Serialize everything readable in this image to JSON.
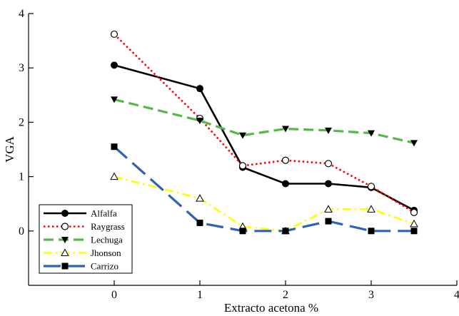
{
  "chart_data": {
    "type": "line",
    "xlabel": "Extracto acetona %",
    "ylabel": "VGA",
    "xlim": [
      -1,
      4
    ],
    "ylim": [
      -1,
      4
    ],
    "xticks": [
      0,
      1,
      2,
      3,
      4
    ],
    "yticks": [
      0,
      1,
      2,
      3,
      4
    ],
    "xtick_labels": [
      "0",
      "1",
      "2",
      "3",
      "4"
    ],
    "ytick_labels": [
      "0",
      "1",
      "2",
      "3",
      "4"
    ],
    "grid": false,
    "legend_position": "bottom-left",
    "x": [
      0,
      1,
      1.5,
      2,
      2.5,
      3,
      3.5
    ],
    "series": [
      {
        "name": "Alfalfa",
        "values": [
          3.05,
          2.62,
          1.17,
          0.87,
          0.87,
          0.8,
          0.38
        ],
        "color": "#000000",
        "dash": "solid",
        "marker": "filled-circle"
      },
      {
        "name": "Raygrass",
        "values": [
          3.62,
          2.07,
          1.2,
          1.3,
          1.24,
          0.82,
          0.34
        ],
        "color": "#ff0000",
        "dash": "dotted",
        "marker": "open-circle"
      },
      {
        "name": "Lechuga",
        "values": [
          2.42,
          2.03,
          1.76,
          1.88,
          1.85,
          1.8,
          1.62
        ],
        "color": "#55b848",
        "dash": "dashed",
        "marker": "filled-triangle-down"
      },
      {
        "name": "Jhonson",
        "values": [
          1.0,
          0.6,
          0.08,
          0.0,
          0.4,
          0.4,
          0.13
        ],
        "color": "#ffff00",
        "dash": "dash-dot",
        "marker": "open-triangle-up"
      },
      {
        "name": "Carrizo",
        "values": [
          1.55,
          0.15,
          0.0,
          0.0,
          0.18,
          0.0,
          0.0
        ],
        "color": "#2e62b8",
        "dash": "long-dash",
        "marker": "filled-square"
      }
    ]
  }
}
